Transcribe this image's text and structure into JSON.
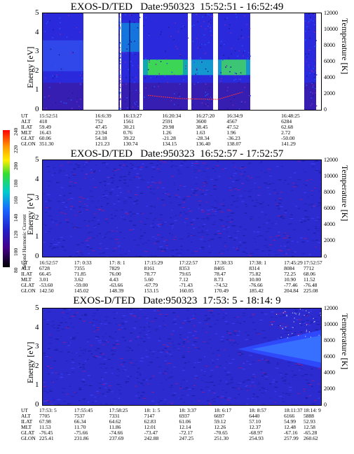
{
  "colorbar": {
    "label": "Second Harmonic Current",
    "ticks": [
      "240",
      "220",
      "200",
      "180",
      "160",
      "140",
      "120",
      "100",
      "80"
    ]
  },
  "panels": [
    {
      "title": "EXOS-D/TED   Date:950323  15:52:51 - 16:52:49",
      "ylabel_left": "Energy [eV]",
      "ylabel_right": "Temperature [K]",
      "ephem_labels": [
        "UT",
        "ALT",
        "ILAT",
        "MLT",
        "GLAT",
        "GLON"
      ],
      "columns": [
        [
          "15:52:51",
          "418",
          "59.49",
          "16.43",
          "60.06",
          "351.30"
        ],
        [
          "16:6:39",
          "752",
          "47.45",
          "23.94",
          "54.18",
          "121.23"
        ],
        [
          "16:13:27",
          "1561",
          "30.21",
          "0.76",
          "39.22",
          "130.74"
        ],
        [
          "16:20:34",
          "2591",
          "29.98",
          "1.26",
          "-21.28",
          "134.15"
        ],
        [
          "16:27:20",
          "3600",
          "38.45",
          "1.63",
          "-28.34",
          "136.40"
        ],
        [
          "16:34:9",
          "4567",
          "47.52",
          "1.96",
          "-36.23",
          "138.07"
        ],
        [
          "16:48:25",
          "6284",
          "62.68",
          "2.72",
          "-50.00",
          "141.29"
        ]
      ]
    },
    {
      "title": "EXOS-D/TED   Date:950323  16:52:57 - 17:52:57",
      "ylabel_left": "Energy [eV]",
      "ylabel_right": "Temperature [K]",
      "ephem_labels": [
        "UT",
        "ALT",
        "ILAT",
        "MLT",
        "GLAT",
        "GLON"
      ],
      "columns": [
        [
          "16:52:57",
          "6728",
          "66.45",
          "3.01",
          "-53.60",
          "142.50"
        ],
        [
          "17: 0:33",
          "7355",
          "71.85",
          "3.62",
          "-59.00",
          "145.02"
        ],
        [
          "17: 8: 1",
          "7829",
          "76.00",
          "4.43",
          "-63.66",
          "148.39"
        ],
        [
          "17:15:29",
          "8161",
          "78.77",
          "5.60",
          "-67.79",
          "153.15"
        ],
        [
          "17:22:57",
          "8353",
          "79.65",
          "7.12",
          "-71.43",
          "160.05"
        ],
        [
          "17:30:33",
          "8405",
          "78.47",
          "8.73",
          "-74.52",
          "170.49"
        ],
        [
          "17:38: 1",
          "8314",
          "75.82",
          "10.00",
          "-76.66",
          "185.42"
        ],
        [
          "17:45:29",
          "8084",
          "72.25",
          "10.90",
          "-77.46",
          "204.84"
        ],
        [
          "17:52:57",
          "7712",
          "68.06",
          "11.52",
          "-76.48",
          "225.08"
        ]
      ]
    },
    {
      "title": "EXOS-D/TED   Date:950323  17:53: 5 - 18:14: 9",
      "ylabel_left": "Energy [eV]",
      "ylabel_right": "Temperature [K]",
      "ephem_labels": [
        "UT",
        "ALT",
        "ILAT",
        "MLT",
        "GLAT",
        "GLON"
      ],
      "columns": [
        [
          "17:53: 5",
          "7705",
          "67.98",
          "11.53",
          "-76.45",
          "225.41"
        ],
        [
          "17:55:45",
          "7537",
          "66.34",
          "11.70",
          "-75.66",
          "231.86"
        ],
        [
          "17:58:25",
          "7331",
          "64.62",
          "11.86",
          "-74.66",
          "237.69"
        ],
        [
          "18: 1: 5",
          "7147",
          "62.83",
          "12.01",
          "-73.47",
          "242.88"
        ],
        [
          "18: 3:37",
          "6937",
          "61.06",
          "12.14",
          "-72.17",
          "247.25"
        ],
        [
          "18: 6:17",
          "6697",
          "59.12",
          "12.26",
          "-70.65",
          "251.30"
        ],
        [
          "18: 8:57",
          "6440",
          "57.10",
          "12.37",
          "-68.97",
          "254.93"
        ],
        [
          "18:11:37",
          "6166",
          "54.99",
          "12.48",
          "-67.16",
          "257.99"
        ],
        [
          "18:14: 9",
          "5888",
          "52.93",
          "12.58",
          "-65.28",
          "260.62"
        ]
      ]
    }
  ],
  "chart_data": [
    {
      "type": "heatmap",
      "title": "EXOS-D/TED   Date:950323  15:52:51 - 16:52:49",
      "ylabel": "Energy [eV]",
      "ylabel_right": "Temperature [K]",
      "ylim": [
        0,
        5
      ],
      "ylim_right": [
        0,
        12000
      ],
      "yticks": [
        0,
        1,
        2,
        3,
        4,
        5
      ],
      "yticks_right": [
        0,
        2000,
        4000,
        6000,
        8000,
        10000,
        12000
      ],
      "xlabel": "UT",
      "x_ticks": [
        "15:52:51",
        "16:6:39",
        "16:13:27",
        "16:20:34",
        "16:27:20",
        "16:34:9",
        "16:48:25"
      ],
      "color_range": [
        80,
        240
      ],
      "data_gaps": [
        "16:1-16:6",
        "16:7-16:8",
        "16:21-16:23",
        "16:26-16:27",
        "16:37-16:46"
      ],
      "temperature_trace": {
        "x": [
          "16:13:27",
          "16:20:34",
          "16:27:20",
          "16:34:9"
        ],
        "y": [
          1800,
          1400,
          1300,
          2200
        ]
      },
      "dominant_band_eV": [
        1.8,
        2.6
      ]
    },
    {
      "type": "heatmap",
      "title": "EXOS-D/TED   Date:950323  16:52:57 - 17:52:57",
      "ylabel": "Energy [eV]",
      "ylabel_right": "Temperature [K]",
      "ylim": [
        0,
        5
      ],
      "ylim_right": [
        0,
        12000
      ],
      "yticks": [
        0,
        1,
        2,
        3,
        4,
        5
      ],
      "yticks_right": [
        0,
        2000,
        4000,
        6000,
        8000,
        10000,
        12000
      ],
      "xlabel": "UT",
      "x_ticks": [
        "16:52:57",
        "17: 0:33",
        "17: 8: 1",
        "17:15:29",
        "17:22:57",
        "17:30:33",
        "17:38: 1",
        "17:45:29",
        "17:52:57"
      ],
      "color_range": [
        80,
        240
      ],
      "level": "noise near low end of color scale"
    },
    {
      "type": "heatmap",
      "title": "EXOS-D/TED   Date:950323  17:53: 5 - 18:14: 9",
      "ylabel": "Energy [eV]",
      "ylabel_right": "Temperature [K]",
      "ylim": [
        0,
        5
      ],
      "ylim_right": [
        0,
        12000
      ],
      "yticks": [
        0,
        1,
        2,
        3,
        4,
        5
      ],
      "yticks_right": [
        0,
        2000,
        4000,
        6000,
        8000,
        10000,
        12000
      ],
      "xlabel": "UT",
      "x_ticks": [
        "17:53: 5",
        "17:55:45",
        "17:58:25",
        "18: 1: 5",
        "18: 3:37",
        "18: 6:17",
        "18: 8:57",
        "18:11:37",
        "18:14: 9"
      ],
      "color_range": [
        80,
        240
      ],
      "enhanced_band_eV": [
        2.2,
        3.6
      ],
      "enhanced_band_from": "18: 6:17"
    }
  ]
}
